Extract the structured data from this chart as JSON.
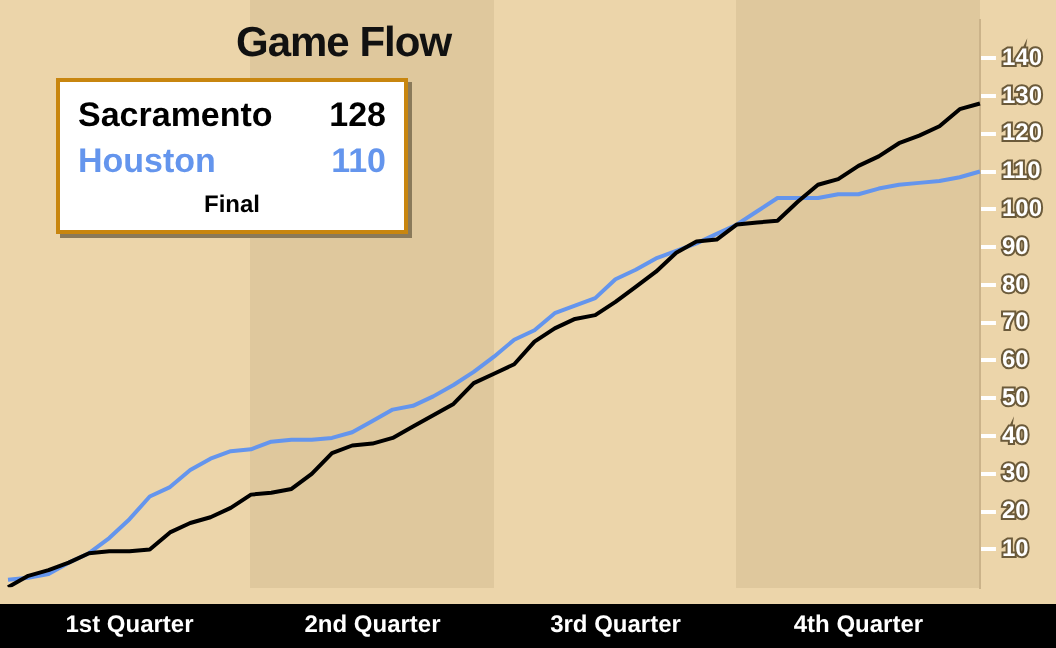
{
  "chart_data": {
    "type": "line",
    "title": "Game Flow",
    "categories": [
      null,
      null,
      null,
      null,
      null,
      null,
      "1st Quarter",
      null,
      null,
      null,
      null,
      null,
      null,
      null,
      null,
      null,
      null,
      null,
      "2nd Quarter",
      null,
      null,
      null,
      null,
      null,
      null,
      null,
      null,
      null,
      null,
      null,
      "3rd Quarter",
      null,
      null,
      null,
      null,
      null,
      null,
      null,
      null,
      null,
      null,
      null,
      "4th Quarter",
      null,
      null,
      null,
      null,
      null,
      null
    ],
    "ylim": [
      0,
      150
    ],
    "yticks": [
      10,
      20,
      30,
      40,
      50,
      60,
      70,
      80,
      90,
      100,
      110,
      120,
      130,
      140
    ],
    "legend": "top left",
    "grid": false,
    "marker": "none",
    "annotations": [
      "128",
      "110",
      "Final"
    ],
    "series": [
      {
        "name": "Sacramento",
        "color": "#000000",
        "values": [
          0,
          3,
          4.5,
          6.5,
          9,
          9.5,
          9.5,
          10,
          14.5,
          17,
          18.5,
          21,
          24.5,
          25,
          26,
          30,
          35.5,
          37.5,
          38,
          39.5,
          42.5,
          45.5,
          48.5,
          54,
          56.5,
          59,
          65,
          68.5,
          71,
          72,
          75.5,
          79.5,
          83.5,
          88.5,
          91.5,
          92,
          96,
          96.5,
          97,
          102,
          106.5,
          108,
          111.5,
          114,
          117.5,
          119.5,
          122,
          126.5,
          128
        ]
      },
      {
        "name": "Houston",
        "color": "#6495ed",
        "values": [
          2,
          2.5,
          3.5,
          6.5,
          9,
          13,
          18,
          24,
          26.5,
          31,
          34,
          36,
          36.5,
          38.5,
          39,
          39,
          39.5,
          41,
          44,
          47,
          48,
          50.5,
          53.5,
          57,
          61,
          65.5,
          68,
          72.5,
          74.5,
          76.5,
          81.5,
          84,
          87,
          89,
          91,
          93.5,
          96,
          99.5,
          103,
          103,
          103,
          104,
          104,
          105.5,
          106.5,
          107,
          107.5,
          108.5,
          110
        ]
      }
    ]
  }
}
